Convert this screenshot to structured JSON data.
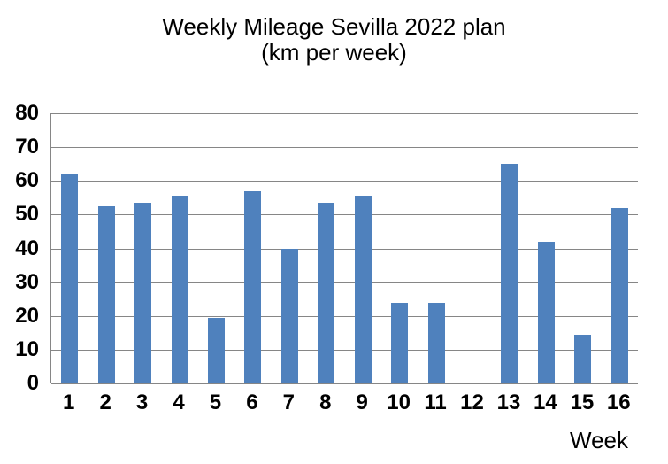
{
  "chart_data": {
    "type": "bar",
    "title": "Weekly Mileage Sevilla 2022 plan",
    "subtitle": "(km per week)",
    "categories": [
      "1",
      "2",
      "3",
      "4",
      "5",
      "6",
      "7",
      "8",
      "9",
      "10",
      "11",
      "12",
      "13",
      "14",
      "15",
      "16"
    ],
    "values": [
      62,
      52.5,
      53.5,
      55.5,
      19.5,
      57,
      40,
      53.5,
      55.5,
      24,
      24,
      0,
      65,
      42,
      14.5,
      52
    ],
    "xlabel": "Week",
    "ylabel": "",
    "ylim": [
      0,
      80
    ],
    "yticks": [
      0,
      10,
      20,
      30,
      40,
      50,
      60,
      70,
      80
    ],
    "grid": true,
    "legend": false,
    "colors": {
      "bar": "#4F81BD",
      "gridline": "#868686",
      "axis": "#868686",
      "text": "#000000",
      "background": "#FFFFFF"
    }
  }
}
